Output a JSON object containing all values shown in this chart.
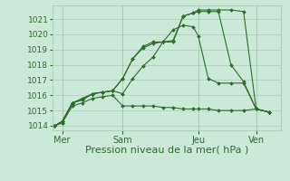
{
  "xlabel": "Pression niveau de la mer( hPa )",
  "bg_color": "#cce8d8",
  "grid_color_major": "#aaccb8",
  "grid_color_minor": "#bbddcc",
  "line_color": "#2d6e2d",
  "ylim": [
    1013.7,
    1021.9
  ],
  "xlim": [
    -0.1,
    9.0
  ],
  "yticks": [
    1014,
    1015,
    1016,
    1017,
    1018,
    1019,
    1020,
    1021
  ],
  "ytick_fontsize": 6.5,
  "xtick_fontsize": 7,
  "xlabel_fontsize": 8,
  "day_labels": [
    "Mer",
    "Sam",
    "Jeu",
    "Ven"
  ],
  "vline_positions": [
    0.3,
    2.7,
    5.7,
    8.0
  ],
  "series1_x": [
    0.0,
    0.3,
    0.7,
    1.1,
    1.5,
    1.9,
    2.3,
    2.7,
    3.1,
    3.5,
    3.9,
    4.3,
    4.7,
    5.1,
    5.5,
    5.7,
    6.1,
    6.5,
    7.0,
    7.5,
    8.0,
    8.5
  ],
  "series1_y": [
    1014.0,
    1014.2,
    1015.5,
    1015.8,
    1016.1,
    1016.2,
    1016.3,
    1017.1,
    1018.4,
    1019.1,
    1019.4,
    1019.5,
    1019.5,
    1021.2,
    1021.4,
    1021.5,
    1021.5,
    1021.5,
    1018.0,
    1016.9,
    1015.1,
    1014.9
  ],
  "series2_x": [
    0.0,
    0.3,
    0.7,
    1.1,
    1.5,
    1.9,
    2.3,
    2.7,
    3.1,
    3.5,
    3.9,
    4.3,
    4.7,
    5.1,
    5.5,
    5.7,
    6.1,
    6.5,
    7.0,
    7.5,
    8.0,
    8.5
  ],
  "series2_y": [
    1014.0,
    1014.3,
    1015.5,
    1015.7,
    1016.1,
    1016.2,
    1016.3,
    1017.1,
    1018.4,
    1019.2,
    1019.5,
    1019.5,
    1019.6,
    1021.2,
    1021.4,
    1021.6,
    1021.6,
    1021.6,
    1021.6,
    1021.5,
    1015.1,
    1014.9
  ],
  "series3_x": [
    0.0,
    0.3,
    0.7,
    1.1,
    1.5,
    1.9,
    2.3,
    2.7,
    3.1,
    3.5,
    3.9,
    4.3,
    4.7,
    5.1,
    5.5,
    5.7,
    6.1,
    6.5,
    7.0,
    7.5,
    8.0,
    8.5
  ],
  "series3_y": [
    1014.0,
    1014.2,
    1015.3,
    1015.5,
    1015.8,
    1015.9,
    1016.0,
    1015.3,
    1015.3,
    1015.3,
    1015.3,
    1015.2,
    1015.2,
    1015.1,
    1015.1,
    1015.1,
    1015.1,
    1015.0,
    1015.0,
    1015.0,
    1015.1,
    1014.9
  ],
  "series4_x": [
    0.0,
    0.3,
    0.7,
    1.1,
    1.5,
    1.9,
    2.3,
    2.7,
    3.1,
    3.5,
    3.9,
    4.3,
    4.7,
    5.1,
    5.5,
    5.7,
    6.1,
    6.5,
    7.0,
    7.5,
    8.0,
    8.5
  ],
  "series4_y": [
    1014.0,
    1014.3,
    1015.5,
    1015.7,
    1016.1,
    1016.2,
    1016.3,
    1016.1,
    1017.1,
    1017.9,
    1018.5,
    1019.5,
    1020.3,
    1020.6,
    1020.5,
    1019.9,
    1017.1,
    1016.8,
    1016.8,
    1016.8,
    1015.1,
    1014.9
  ]
}
